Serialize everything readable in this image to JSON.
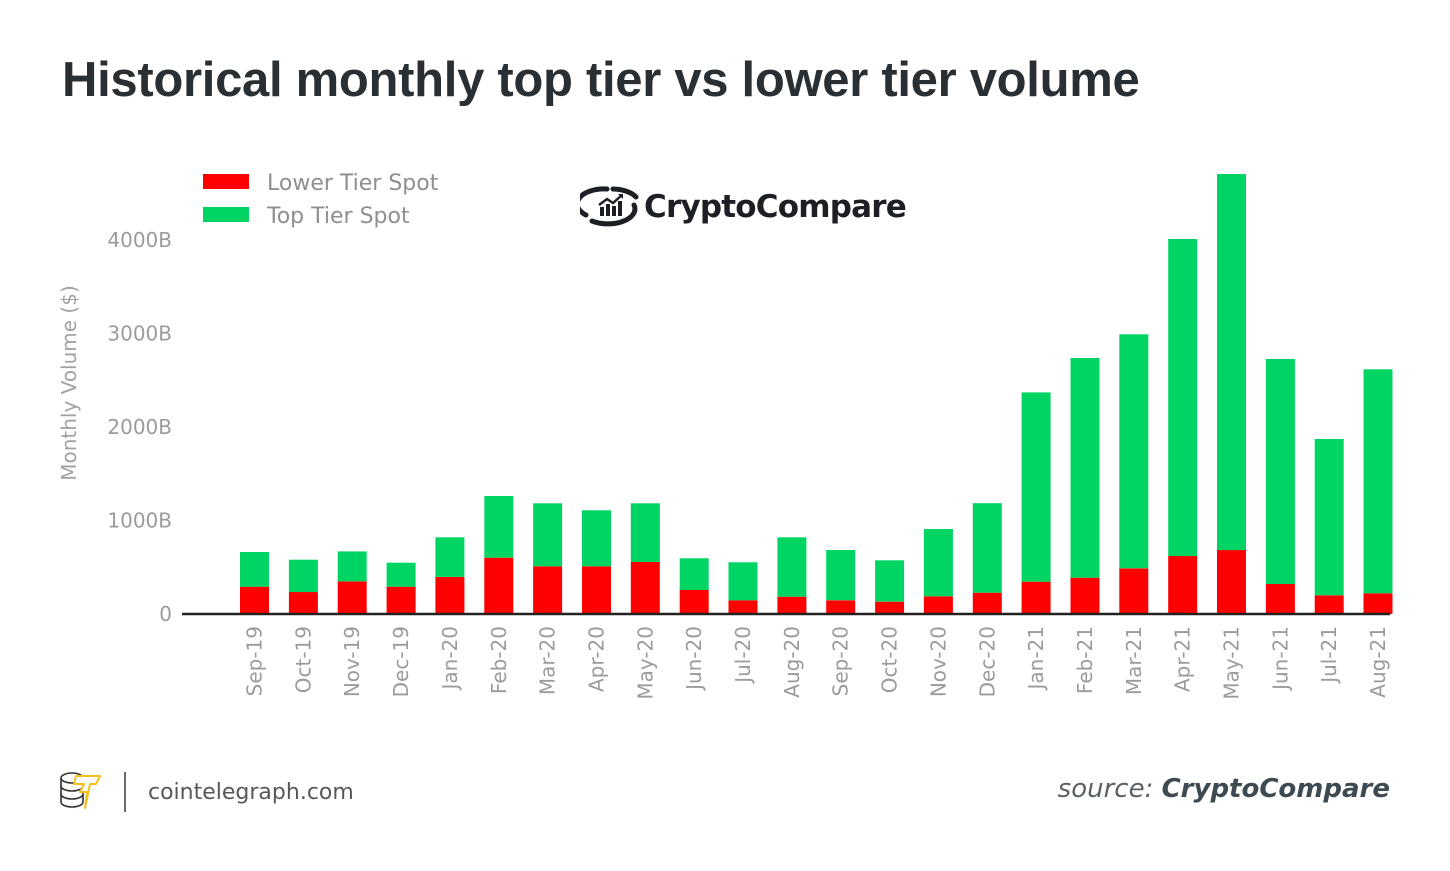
{
  "title": "Historical monthly top tier vs lower tier volume",
  "watermark": {
    "text": "CryptoCompare",
    "icon": "cryptocompare-logo-icon"
  },
  "footer": {
    "site": "cointelegraph.com",
    "logo_icon": "cointelegraph-logo-icon",
    "source_label": "source:",
    "source_name": "CryptoCompare"
  },
  "colors": {
    "lower_tier": "#ff0000",
    "top_tier": "#00d563",
    "axis": "#222222",
    "text_muted": "#9b9b9b"
  },
  "chart_data": {
    "type": "bar",
    "stacked": true,
    "title": "Historical monthly top tier vs lower tier volume",
    "xlabel": "",
    "ylabel": "Monthly Volume ($)",
    "ylim": [
      0,
      4800
    ],
    "yticks": [
      0,
      1000,
      2000,
      3000,
      4000
    ],
    "ytick_labels": [
      "0",
      "1000B",
      "2000B",
      "3000B",
      "4000B"
    ],
    "unit": "B USD",
    "grid": false,
    "legend_position": "top-left",
    "categories": [
      "Sep-19",
      "Oct-19",
      "Nov-19",
      "Dec-19",
      "Jan-20",
      "Feb-20",
      "Mar-20",
      "Apr-20",
      "May-20",
      "Jun-20",
      "Jul-20",
      "Aug-20",
      "Sep-20",
      "Oct-20",
      "Nov-20",
      "Dec-20",
      "Jan-21",
      "Feb-21",
      "Mar-21",
      "Apr-21",
      "May-21",
      "Jun-21",
      "Jul-21",
      "Aug-21"
    ],
    "series": [
      {
        "name": "Lower Tier Spot",
        "color": "#ff0000",
        "values": [
          292,
          235,
          349,
          292,
          396,
          602,
          510,
          510,
          556,
          257,
          147,
          185,
          147,
          132,
          189,
          228,
          345,
          388,
          488,
          620,
          684,
          321,
          200,
          221
        ]
      },
      {
        "name": "Top Tier Spot",
        "color": "#00d563",
        "values": [
          371,
          346,
          321,
          257,
          424,
          660,
          674,
          599,
          628,
          339,
          406,
          635,
          537,
          442,
          720,
          957,
          2025,
          2350,
          2503,
          3391,
          4022,
          2406,
          1672,
          2396
        ]
      }
    ],
    "totals": [
      663,
      581,
      670,
      549,
      820,
      1262,
      1184,
      1109,
      1184,
      596,
      553,
      820,
      684,
      574,
      909,
      1185,
      2370,
      2738,
      2991,
      4011,
      4706,
      2727,
      1872,
      2617
    ]
  }
}
